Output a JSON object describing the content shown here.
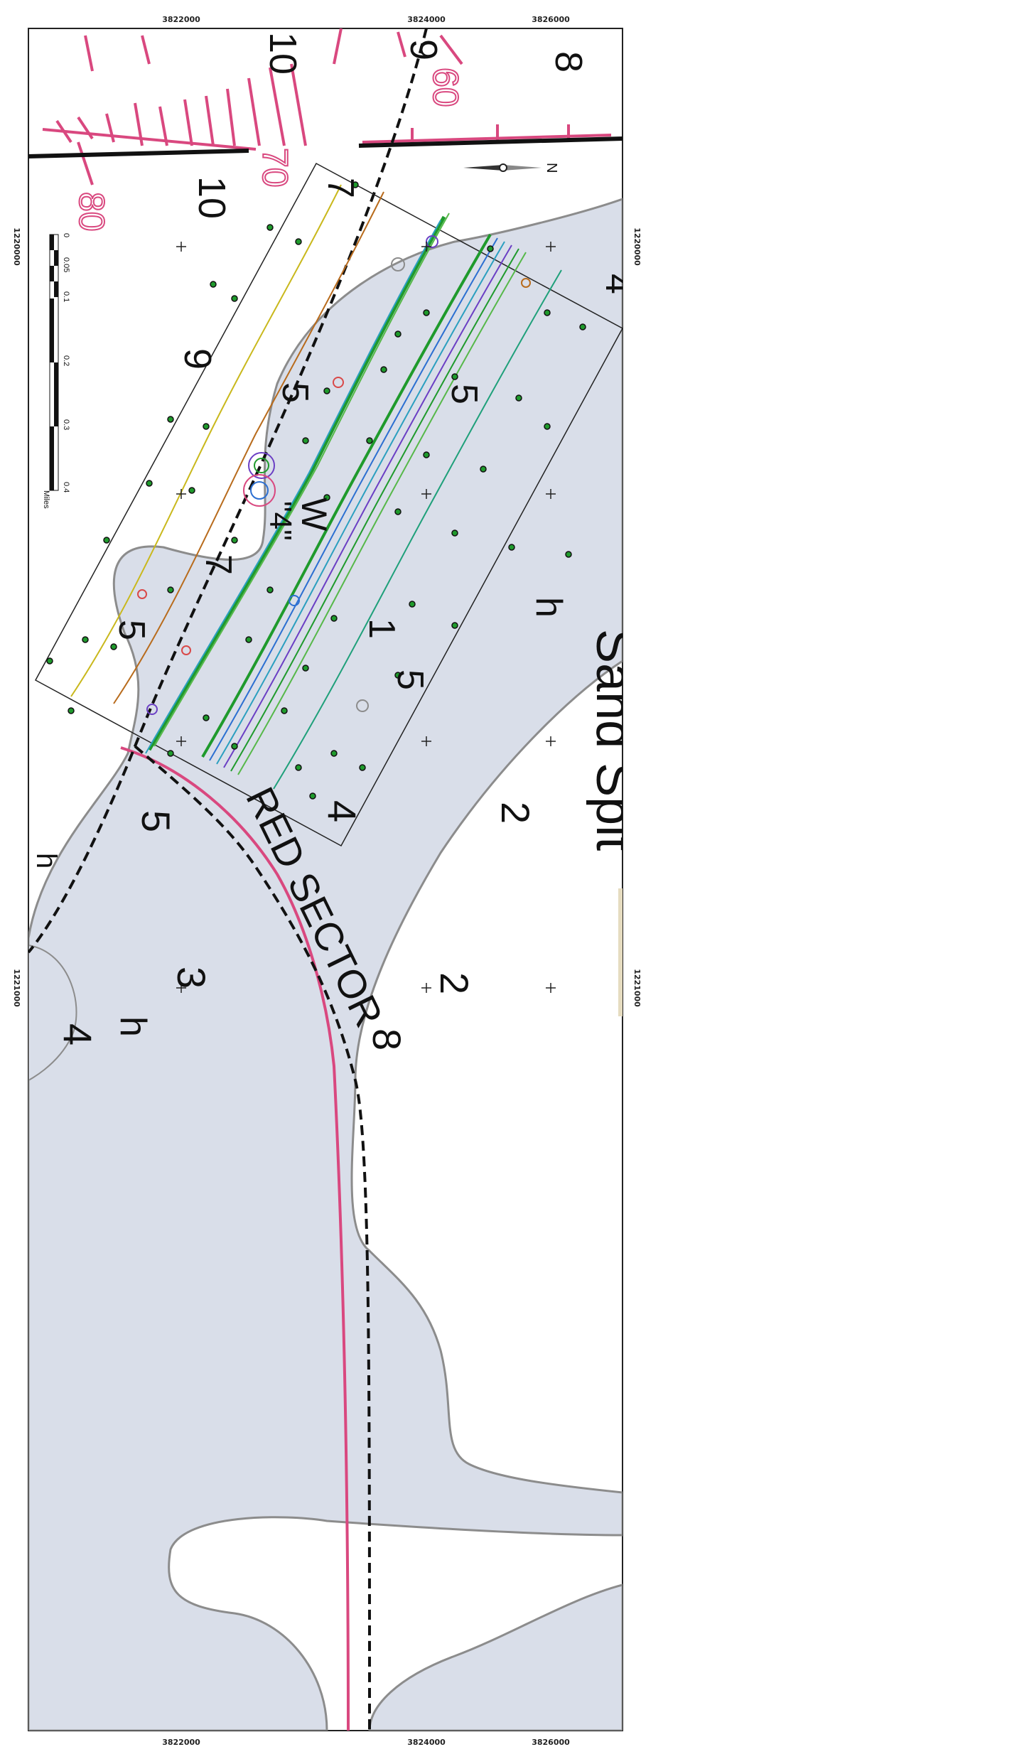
{
  "map": {
    "colors": {
      "shoal": "#d9dee9",
      "depth_contour": "#8c8c8c",
      "red_sector": "#d9487f",
      "survey_box": "#222222",
      "channel_line": "#111111",
      "marker": "#1f9a2c"
    },
    "top_coords": [
      "3822000",
      "3824000",
      "3826000"
    ],
    "bottom_coords": [
      "3822000",
      "3824000",
      "3826000"
    ],
    "side_coords": [
      "1220000",
      "1220000",
      "1221000",
      "1221000"
    ],
    "depth_labels": [
      "10",
      "10",
      "9",
      "9",
      "8",
      "4",
      "5",
      "5",
      "W",
      "\"4\"",
      "7",
      "5",
      "1",
      "5",
      "2",
      "5",
      "4",
      "2",
      "3",
      "8",
      "4",
      "h",
      "h",
      "h",
      "7"
    ],
    "place_label": "Sand Spit",
    "sector_label": "RED SECTOR",
    "compass_label": "N",
    "pink_labels": [
      "60",
      "70",
      "80"
    ],
    "scale_bar": {
      "ticks": [
        "0",
        "0.05",
        "0.1",
        "0.2",
        "0.3",
        "0.4"
      ],
      "unit": "Miles"
    }
  }
}
